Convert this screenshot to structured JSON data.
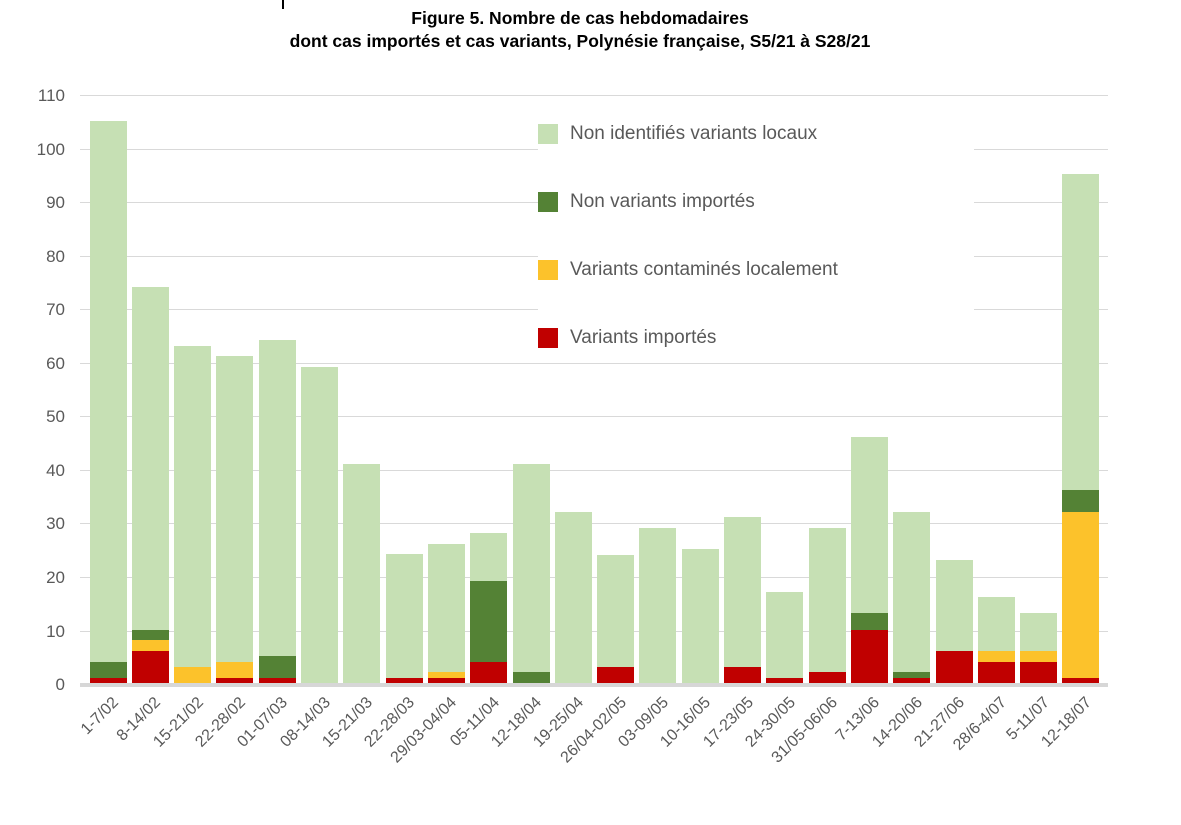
{
  "title": {
    "line1": "Figure 5. Nombre de cas hebdomadaires",
    "line2": "dont cas importés et cas variants, Polynésie française, S5/21 à S28/21"
  },
  "colors": {
    "non_identifies_variants_locaux": "#C6E0B4",
    "non_variants_importes": "#548235",
    "variants_contamines_localement": "#FCC22B",
    "variants_importes": "#C00000",
    "gridline": "#D9D9D9",
    "axis_text": "#595959",
    "title_text": "#000000"
  },
  "chart_data": {
    "type": "bar",
    "stacked": true,
    "title": "Figure 5. Nombre de cas hebdomadaires dont cas importés et cas variants, Polynésie française, S5/21 à S28/21",
    "xlabel": "",
    "ylabel": "",
    "ylim": [
      0,
      110
    ],
    "ytick_step": 10,
    "yticks": [
      0,
      10,
      20,
      30,
      40,
      50,
      60,
      70,
      80,
      90,
      100,
      110
    ],
    "grid": true,
    "legend_position": "upper-center",
    "categories": [
      "1-7/02",
      "8-14/02",
      "15-21/02",
      "22-28/02",
      "01-07/03",
      "08-14/03",
      "15-21/03",
      "22-28/03",
      "29/03-04/04",
      "05-11/04",
      "12-18/04",
      "19-25/04",
      "26/04-02/05",
      "03-09/05",
      "10-16/05",
      "17-23/05",
      "24-30/05",
      "31/05-06/06",
      "7-13/06",
      "14-20/06",
      "21-27/06",
      "28/6-4/07",
      "5-11/07",
      "12-18/07"
    ],
    "series": [
      {
        "key": "variants-importes",
        "name": "Variants importés",
        "color": "#C00000",
        "values": [
          1,
          6,
          0,
          1,
          1,
          0,
          0,
          1,
          1,
          4,
          0,
          0,
          3,
          0,
          0,
          3,
          1,
          2,
          10,
          1,
          6,
          4,
          4,
          1
        ]
      },
      {
        "key": "variants-contamines-localement",
        "name": "Variants contaminés localement",
        "color": "#FCC22B",
        "values": [
          0,
          2,
          3,
          3,
          0,
          0,
          0,
          0,
          1,
          0,
          0,
          0,
          0,
          0,
          0,
          0,
          0,
          0,
          0,
          0,
          0,
          2,
          2,
          31
        ]
      },
      {
        "key": "non-variants-importes",
        "name": "Non variants importés",
        "color": "#548235",
        "values": [
          3,
          2,
          0,
          0,
          4,
          0,
          0,
          0,
          0,
          15,
          2,
          0,
          0,
          0,
          0,
          0,
          0,
          0,
          3,
          1,
          0,
          0,
          0,
          4
        ]
      },
      {
        "key": "non-identifies-variants-locaux",
        "name": "Non identifiés variants locaux",
        "color": "#C6E0B4",
        "values": [
          101,
          64,
          60,
          57,
          59,
          59,
          41,
          23,
          24,
          9,
          39,
          32,
          21,
          29,
          25,
          28,
          16,
          27,
          33,
          30,
          17,
          10,
          7,
          59
        ]
      }
    ],
    "totals": [
      105,
      74,
      63,
      61,
      64,
      59,
      41,
      24,
      26,
      28,
      41,
      32,
      24,
      29,
      25,
      31,
      17,
      29,
      46,
      32,
      23,
      16,
      13,
      95
    ],
    "legend_order": [
      "non-identifies-variants-locaux",
      "non-variants-importes",
      "variants-contamines-localement",
      "variants-importes"
    ]
  }
}
